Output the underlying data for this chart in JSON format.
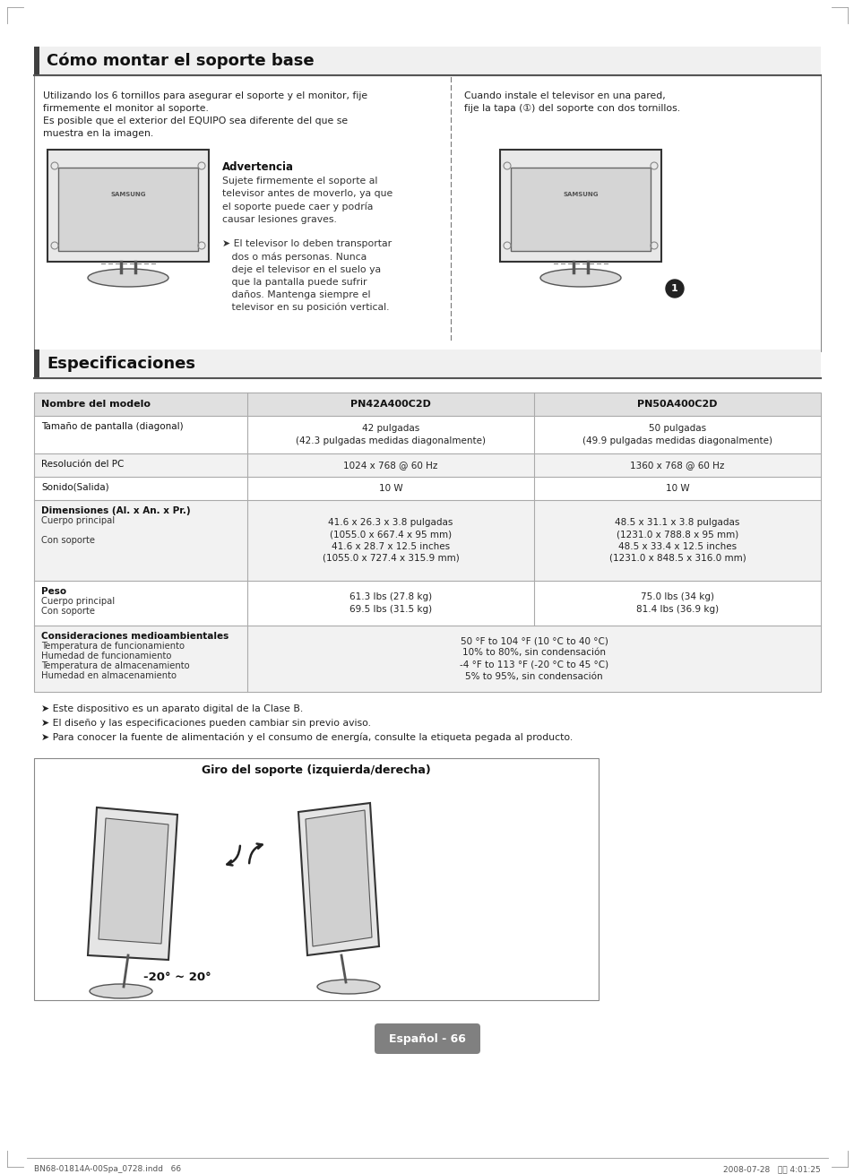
{
  "page_bg": "#ffffff",
  "section1_title": "Cómo montar el soporte base",
  "section1_text_left": "Utilizando los 6 tornillos para asegurar el soporte y el monitor, fije\nfirmemente el monitor al soporte.\nEs posible que el exterior del EQUIPO sea diferente del que se\nmuestra en la imagen.",
  "section1_text_right": "Cuando instale el televisor en una pared,\nfije la tapa (①) del soporte con dos tornillos.",
  "warning_title": "Advertencia",
  "warning_text": "Sujete firmemente el soporte al\ntelevisor antes de moverlo, ya que\nel soporte puede caer y podría\ncausar lesiones graves.",
  "bullet1": "➤ El televisor lo deben transportar\n   dos o más personas. Nunca\n   deje el televisor en el suelo ya\n   que la pantalla puede sufrir\n   daños. Mantenga siempre el\n   televisor en su posición vertical.",
  "section2_title": "Especificaciones",
  "table_headers": [
    "Nombre del modelo",
    "PN42A400C2D",
    "PN50A400C2D"
  ],
  "table_rows": [
    [
      "Tamaño de pantalla (diagonal)",
      "42 pulgadas\n(42.3 pulgadas medidas diagonalmente)",
      "50 pulgadas\n(49.9 pulgadas medidas diagonalmente)"
    ],
    [
      "Resolución del PC",
      "1024 x 768 @ 60 Hz",
      "1360 x 768 @ 60 Hz"
    ],
    [
      "Sonido(Salida)",
      "10 W",
      "10 W"
    ],
    [
      "Dimensiones (Al. x An. x Pr.)\nCuerpo principal\n\nCon soporte",
      "41.6 x 26.3 x 3.8 pulgadas\n(1055.0 x 667.4 x 95 mm)\n41.6 x 28.7 x 12.5 inches\n(1055.0 x 727.4 x 315.9 mm)",
      "48.5 x 31.1 x 3.8 pulgadas\n(1231.0 x 788.8 x 95 mm)\n48.5 x 33.4 x 12.5 inches\n(1231.0 x 848.5 x 316.0 mm)"
    ],
    [
      "Peso\nCuerpo principal\nCon soporte",
      "61.3 lbs (27.8 kg)\n69.5 lbs (31.5 kg)",
      "75.0 lbs (34 kg)\n81.4 lbs (36.9 kg)"
    ],
    [
      "Consideraciones medioambientales\nTemperatura de funcionamiento\nHumedad de funcionamiento\nTemperatura de almacenamiento\nHumedad en almacenamiento",
      "50 °F to 104 °F (10 °C to 40 °C)\n10% to 80%, sin condensación\n-4 °F to 113 °F (-20 °C to 45 °C)\n5% to 95%, sin condensación",
      ""
    ]
  ],
  "bullet_notes": [
    "➤ Este dispositivo es un aparato digital de la Clase B.",
    "➤ El diseño y las especificaciones pueden cambiar sin previo aviso.",
    "➤ Para conocer la fuente de alimentación y el consumo de energía, consulte la etiqueta pegada al producto."
  ],
  "swivel_title": "Giro del soporte (izquierda/derecha)",
  "swivel_label": "-20° ~ 20°",
  "page_label": "Español - 66",
  "footer_left": "BN68-01814A-00Spa_0728.indd   66",
  "footer_right": "2008-07-28   오후 4:01:25",
  "header_bar_color": "#404040",
  "table_header_bg": "#e0e0e0",
  "table_alt_bg": "#f2f2f2",
  "table_border": "#aaaaaa",
  "swivel_box_bg": "#d0d0d0",
  "page_label_bg": "#808080",
  "page_label_color": "#ffffff"
}
